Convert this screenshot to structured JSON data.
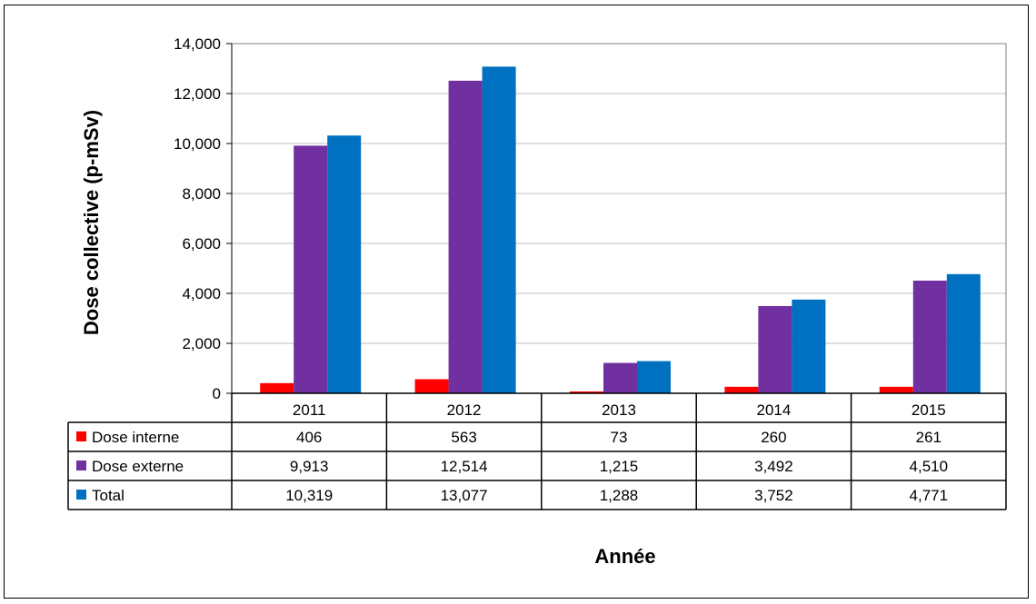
{
  "chart_data": {
    "type": "bar",
    "xlabel": "Année",
    "ylabel": "Dose collective (p-mSv)",
    "ylim": [
      0,
      14000
    ],
    "yticks": [
      "0",
      "2,000",
      "4,000",
      "6,000",
      "8,000",
      "10,000",
      "12,000",
      "14,000"
    ],
    "categories": [
      "2011",
      "2012",
      "2013",
      "2014",
      "2015"
    ],
    "series": [
      {
        "name": "Dose interne",
        "color": "#ff0000",
        "values": [
          406,
          563,
          73,
          260,
          261
        ],
        "labels": [
          "406",
          "563",
          "73",
          "260",
          "261"
        ]
      },
      {
        "name": "Dose externe",
        "color": "#7030a0",
        "values": [
          9913,
          12514,
          1215,
          3492,
          4510
        ],
        "labels": [
          "9,913",
          "12,514",
          "1,215",
          "3,492",
          "4,510"
        ]
      },
      {
        "name": "Total",
        "color": "#0070c0",
        "values": [
          10319,
          13077,
          1288,
          3752,
          4771
        ],
        "labels": [
          "10,319",
          "13,077",
          "1,288",
          "3,752",
          "4,771"
        ]
      }
    ],
    "grid": true,
    "legend": "data-table"
  }
}
